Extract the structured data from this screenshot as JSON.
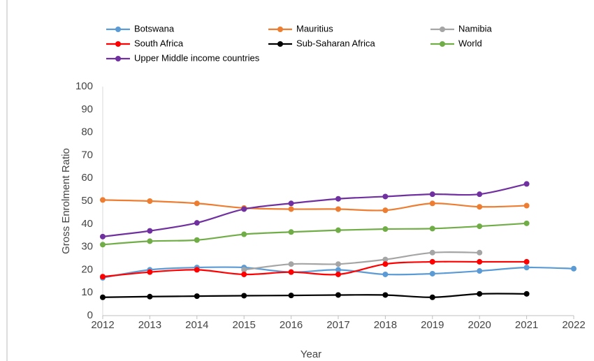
{
  "chart_data": {
    "type": "line",
    "x": [
      2012,
      2013,
      2014,
      2015,
      2016,
      2017,
      2018,
      2019,
      2020,
      2021,
      2022
    ],
    "xlim": [
      2012,
      2022
    ],
    "xticks": [
      2012,
      2013,
      2014,
      2015,
      2016,
      2017,
      2018,
      2019,
      2020,
      2021,
      2022
    ],
    "ylim": [
      0,
      100
    ],
    "yticks": [
      0,
      10,
      20,
      30,
      40,
      50,
      60,
      70,
      80,
      90,
      100
    ],
    "xlabel": "Year",
    "ylabel": "Gross Enrolment Ratio",
    "grid": false,
    "legend": "top",
    "series": [
      {
        "name": "Botswana",
        "color": "#5b9bd5",
        "values": [
          16.5,
          20,
          21,
          21,
          19,
          20,
          18,
          18.3,
          19.5,
          21,
          20.5
        ]
      },
      {
        "name": "Mauritius",
        "color": "#ed7d31",
        "values": [
          50.5,
          50,
          49,
          47,
          46.5,
          46.5,
          46,
          49,
          47.5,
          48,
          null
        ]
      },
      {
        "name": "Namibia",
        "color": "#a5a5a5",
        "values": [
          null,
          null,
          null,
          20,
          22.5,
          22.5,
          24.5,
          27.5,
          27.5,
          null,
          null
        ]
      },
      {
        "name": "South Africa",
        "color": "#ff0000",
        "values": [
          17,
          19,
          20,
          18,
          19,
          18,
          22.5,
          23.5,
          23.5,
          23.5,
          null
        ]
      },
      {
        "name": "Sub-Saharan Africa",
        "color": "#000000",
        "values": [
          8,
          8.3,
          8.5,
          8.7,
          8.8,
          9,
          9,
          8,
          9.5,
          9.5,
          null
        ]
      },
      {
        "name": "World",
        "color": "#70ad47",
        "values": [
          31,
          32.5,
          33,
          35.5,
          36.5,
          37.3,
          37.8,
          38,
          39,
          40.3,
          null
        ]
      },
      {
        "name": "Upper Middle income countries",
        "color": "#7030a0",
        "values": [
          34.5,
          37,
          40.5,
          46.5,
          49,
          51,
          52,
          53,
          53,
          57.5,
          null
        ]
      }
    ]
  }
}
